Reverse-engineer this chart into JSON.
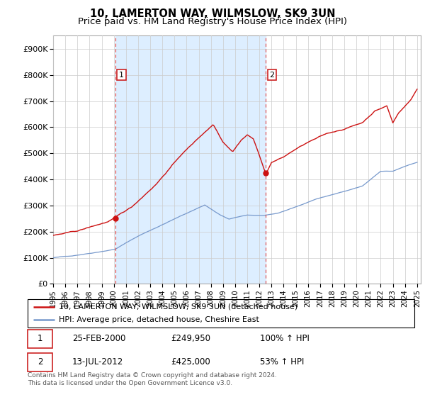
{
  "title": "10, LAMERTON WAY, WILMSLOW, SK9 3UN",
  "subtitle": "Price paid vs. HM Land Registry's House Price Index (HPI)",
  "ylim": [
    0,
    950000
  ],
  "yticks": [
    0,
    100000,
    200000,
    300000,
    400000,
    500000,
    600000,
    700000,
    800000,
    900000
  ],
  "ytick_labels": [
    "£0",
    "£100K",
    "£200K",
    "£300K",
    "£400K",
    "£500K",
    "£600K",
    "£700K",
    "£800K",
    "£900K"
  ],
  "sale1": {
    "date_num": 2000.12,
    "price": 249950,
    "label": "1"
  },
  "sale2": {
    "date_num": 2012.54,
    "price": 425000,
    "label": "2"
  },
  "hpi_color": "#7799cc",
  "price_color": "#cc1111",
  "vline_color": "#dd4444",
  "shade_color": "#ddeeff",
  "grid_color": "#cccccc",
  "legend_entries": [
    "10, LAMERTON WAY, WILMSLOW, SK9 3UN (detached house)",
    "HPI: Average price, detached house, Cheshire East"
  ],
  "table_rows": [
    {
      "num": "1",
      "date": "25-FEB-2000",
      "price": "£249,950",
      "pct": "100% ↑ HPI"
    },
    {
      "num": "2",
      "date": "13-JUL-2012",
      "price": "£425,000",
      "pct": "53% ↑ HPI"
    }
  ],
  "footer": "Contains HM Land Registry data © Crown copyright and database right 2024.\nThis data is licensed under the Open Government Licence v3.0.",
  "title_fontsize": 10.5,
  "subtitle_fontsize": 9.5,
  "tick_fontsize": 8,
  "legend_fontsize": 8,
  "table_fontsize": 8.5,
  "footer_fontsize": 6.5
}
